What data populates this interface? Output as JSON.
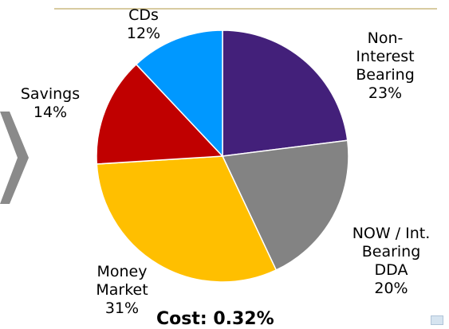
{
  "chart_data": {
    "type": "pie",
    "slices": [
      {
        "label_lines": [
          "Non-",
          "Interest",
          "Bearing"
        ],
        "value": 23,
        "pct": "23%",
        "color": "#43207a"
      },
      {
        "label_lines": [
          "NOW / Int.",
          "Bearing",
          "DDA"
        ],
        "value": 20,
        "pct": "20%",
        "color": "#838383"
      },
      {
        "label_lines": [
          "Money",
          "Market"
        ],
        "value": 31,
        "pct": "31%",
        "color": "#ffbf00"
      },
      {
        "label_lines": [
          "Savings"
        ],
        "value": 14,
        "pct": "14%",
        "color": "#c00000"
      },
      {
        "label_lines": [
          "CDs"
        ],
        "value": 12,
        "pct": "12%",
        "color": "#0098ff"
      }
    ]
  },
  "caption": "Cost: 0.32%"
}
